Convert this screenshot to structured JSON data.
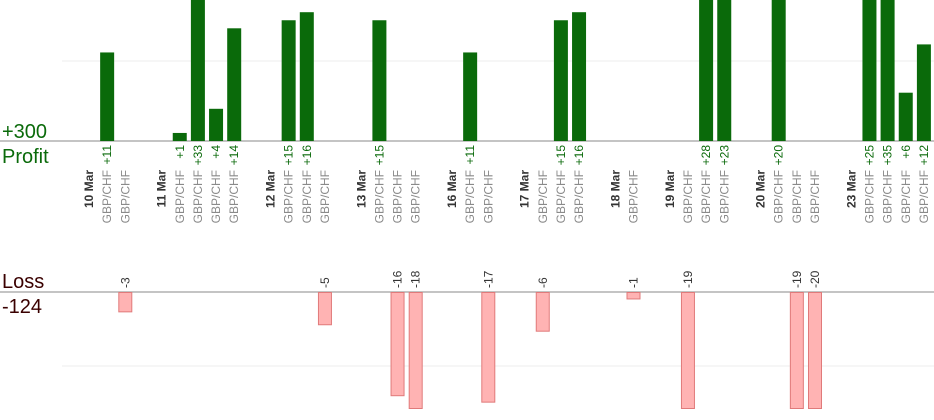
{
  "chart_data": {
    "type": "bar",
    "profit_label": "Profit",
    "profit_value": "+300",
    "loss_label": "Loss",
    "loss_value": "-124",
    "colors": {
      "profit": "#0a6a0a",
      "loss": "#ffb3b3",
      "loss_border": "#e07a7a",
      "profit_text": "#0a6a0a",
      "loss_text": "#3a0000"
    },
    "slots": [
      {
        "date": "10 Mar"
      },
      {
        "pair": "GBP/CHF",
        "value": 11
      },
      {
        "pair": "GBP/CHF",
        "value": -3
      },
      {},
      {
        "date": "11 Mar"
      },
      {
        "pair": "GBP/CHF",
        "value": 1
      },
      {
        "pair": "GBP/CHF",
        "value": 33
      },
      {
        "pair": "GBP/CHF",
        "value": 4
      },
      {
        "pair": "GBP/CHF",
        "value": 14
      },
      {},
      {
        "date": "12 Mar"
      },
      {
        "pair": "GBP/CHF",
        "value": 15
      },
      {
        "pair": "GBP/CHF",
        "value": 16
      },
      {
        "pair": "GBP/CHF",
        "value": -5
      },
      {},
      {
        "date": "13 Mar"
      },
      {
        "pair": "GBP/CHF",
        "value": 15
      },
      {
        "pair": "GBP/CHF",
        "value": -16
      },
      {
        "pair": "GBP/CHF",
        "value": -18
      },
      {},
      {
        "date": "16 Mar"
      },
      {
        "pair": "GBP/CHF",
        "value": 11
      },
      {
        "pair": "GBP/CHF",
        "value": -17
      },
      {},
      {
        "date": "17 Mar"
      },
      {
        "pair": "GBP/CHF",
        "value": -6
      },
      {
        "pair": "GBP/CHF",
        "value": 15
      },
      {
        "pair": "GBP/CHF",
        "value": 16
      },
      {},
      {
        "date": "18 Mar"
      },
      {
        "pair": "GBP/CHF",
        "value": -1
      },
      {},
      {
        "date": "19 Mar"
      },
      {
        "pair": "GBP/CHF",
        "value": -19
      },
      {
        "pair": "GBP/CHF",
        "value": 28
      },
      {
        "pair": "GBP/CHF",
        "value": 23
      },
      {},
      {
        "date": "20 Mar"
      },
      {
        "pair": "GBP/CHF",
        "value": 20
      },
      {
        "pair": "GBP/CHF",
        "value": -19
      },
      {
        "pair": "GBP/CHF",
        "value": -20
      },
      {},
      {
        "date": "23 Mar"
      },
      {
        "pair": "GBP/CHF",
        "value": 25
      },
      {
        "pair": "GBP/CHF",
        "value": 35
      },
      {
        "pair": "GBP/CHF",
        "value": 6
      },
      {
        "pair": "GBP/CHF",
        "value": 12
      }
    ]
  }
}
